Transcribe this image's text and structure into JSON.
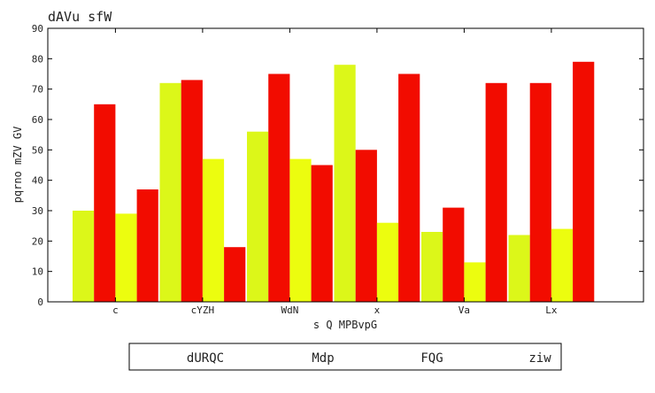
{
  "chart_data": {
    "type": "bar",
    "title": "dAVu  sfW",
    "xlabel": "s Q MPBvpG",
    "ylabel": "pqrno mZV GV",
    "ylim": [
      0,
      90
    ],
    "yticks": [
      0,
      10,
      20,
      30,
      40,
      50,
      60,
      70,
      80,
      90
    ],
    "grid": false,
    "legend_position": "bottom",
    "categories": [
      "c",
      "cYZH",
      "WdN",
      "x",
      "Va",
      "Lx"
    ],
    "series": [
      {
        "name": "dURQC",
        "color": "#dcf719",
        "values": [
          30,
          72,
          56,
          78,
          23,
          22
        ]
      },
      {
        "name": "Mdp",
        "color": "#f20c00",
        "values": [
          65,
          73,
          75,
          50,
          31,
          72
        ]
      },
      {
        "name": "FQG",
        "color": "#ecfd0f",
        "values": [
          29,
          47,
          47,
          26,
          13,
          24
        ]
      },
      {
        "name": "ziw",
        "color": "#f20c00",
        "values": [
          37,
          18,
          45,
          75,
          72,
          79
        ]
      }
    ]
  }
}
